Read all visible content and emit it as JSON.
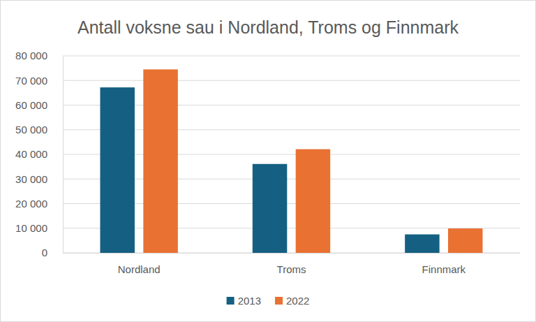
{
  "chart_data": {
    "type": "bar",
    "title": "Antall voksne sau i Nordland, Troms og Finnmark",
    "categories": [
      "Nordland",
      "Troms",
      "Finnmark"
    ],
    "series": [
      {
        "name": "2013",
        "color": "#156082",
        "values": [
          67200,
          36100,
          7500
        ]
      },
      {
        "name": "2022",
        "color": "#e97132",
        "values": [
          74500,
          42100,
          9900
        ]
      }
    ],
    "ylim": [
      0,
      80000
    ],
    "yticks": [
      0,
      {
        "value": 10000,
        "label": "10 000"
      },
      {
        "value": 20000,
        "label": "20 000"
      },
      {
        "value": 30000,
        "label": "30 000"
      },
      {
        "value": 40000,
        "label": "40 000"
      },
      {
        "value": 50000,
        "label": "50 000"
      },
      {
        "value": 60000,
        "label": "60 000"
      },
      {
        "value": 70000,
        "label": "70 000"
      },
      {
        "value": 80000,
        "label": "80 000"
      }
    ],
    "grid": true,
    "legend": "bottom"
  }
}
